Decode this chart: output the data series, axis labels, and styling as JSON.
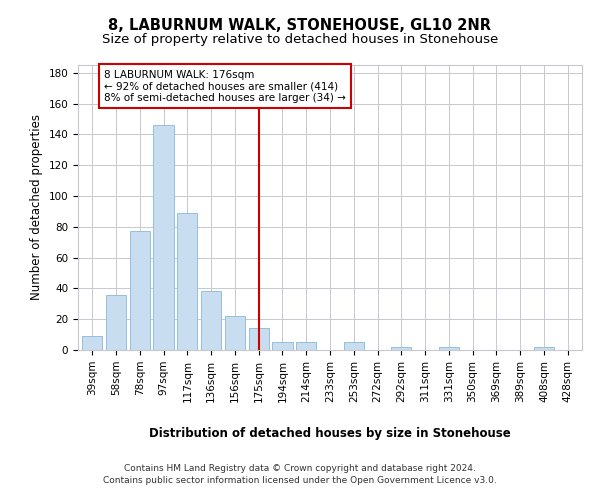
{
  "title": "8, LABURNUM WALK, STONEHOUSE, GL10 2NR",
  "subtitle": "Size of property relative to detached houses in Stonehouse",
  "xlabel": "Distribution of detached houses by size in Stonehouse",
  "ylabel": "Number of detached properties",
  "bar_color": "#c8ddf0",
  "bar_edge_color": "#89b8d8",
  "background_color": "#ffffff",
  "grid_color": "#c8c8d0",
  "categories": [
    "39sqm",
    "58sqm",
    "78sqm",
    "97sqm",
    "117sqm",
    "136sqm",
    "156sqm",
    "175sqm",
    "194sqm",
    "214sqm",
    "233sqm",
    "253sqm",
    "272sqm",
    "292sqm",
    "311sqm",
    "331sqm",
    "350sqm",
    "369sqm",
    "389sqm",
    "408sqm",
    "428sqm"
  ],
  "values": [
    9,
    36,
    77,
    146,
    89,
    38,
    22,
    14,
    5,
    5,
    0,
    5,
    0,
    2,
    0,
    2,
    0,
    0,
    0,
    2,
    0
  ],
  "property_line_x": 7.0,
  "property_line_color": "#cc0000",
  "annotation_text": "8 LABURNUM WALK: 176sqm\n← 92% of detached houses are smaller (414)\n8% of semi-detached houses are larger (34) →",
  "annotation_box_color": "#cc0000",
  "ylim": [
    0,
    185
  ],
  "yticks": [
    0,
    20,
    40,
    60,
    80,
    100,
    120,
    140,
    160,
    180
  ],
  "footer_line1": "Contains HM Land Registry data © Crown copyright and database right 2024.",
  "footer_line2": "Contains public sector information licensed under the Open Government Licence v3.0.",
  "title_fontsize": 10.5,
  "subtitle_fontsize": 9.5,
  "axis_label_fontsize": 8.5,
  "tick_fontsize": 7.5,
  "annotation_fontsize": 7.5,
  "footer_fontsize": 6.5
}
